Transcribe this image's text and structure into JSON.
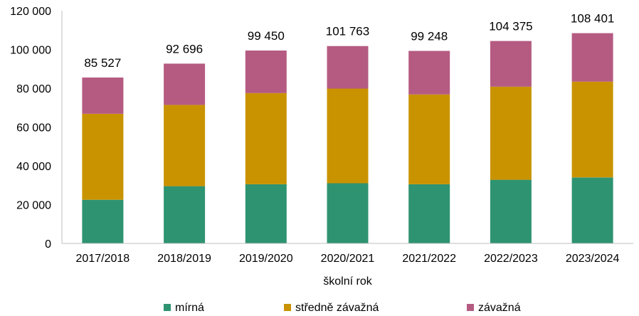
{
  "chart_data": {
    "type": "bar",
    "stacked": true,
    "xlabel": "školní rok",
    "ylabel": "",
    "ylim": [
      0,
      120000
    ],
    "yticks": [
      0,
      20000,
      40000,
      60000,
      80000,
      100000,
      120000
    ],
    "ytick_labels": [
      "0",
      "20 000",
      "40 000",
      "60 000",
      "80 000",
      "100 000",
      "120 000"
    ],
    "categories": [
      "2017/2018",
      "2018/2019",
      "2019/2020",
      "2020/2021",
      "2021/2022",
      "2022/2023",
      "2023/2024"
    ],
    "series": [
      {
        "name": "mírná",
        "color": "#2e9370",
        "values": [
          22500,
          29500,
          30500,
          31000,
          30500,
          32800,
          34000
        ]
      },
      {
        "name": "středně závažná",
        "color": "#c99300",
        "values": [
          44300,
          41900,
          47000,
          48800,
          46300,
          48000,
          49400
        ]
      },
      {
        "name": "závažná",
        "color": "#b55b82",
        "values": [
          18727,
          21296,
          21950,
          21963,
          22448,
          23575,
          25001
        ]
      }
    ],
    "totals": [
      85527,
      92696,
      99450,
      101763,
      99248,
      104375,
      108401
    ],
    "total_labels": [
      "85 527",
      "92 696",
      "99 450",
      "101 763",
      "99 248",
      "104 375",
      "108 401"
    ],
    "legend_position": "bottom",
    "grid": false
  }
}
